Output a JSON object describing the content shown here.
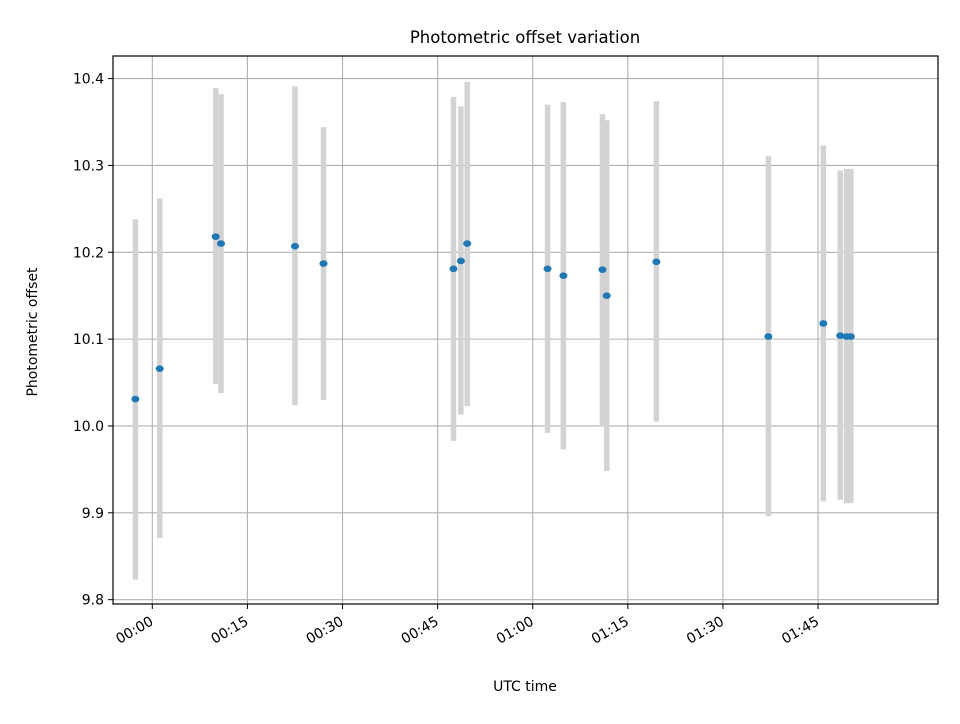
{
  "chart_data": {
    "type": "scatter",
    "title": "Photometric offset variation",
    "xlabel": "UTC time",
    "ylabel": "Photometric offset",
    "grid": true,
    "x_tick_labels": [
      "00:00",
      "00:15",
      "00:30",
      "00:45",
      "01:00",
      "01:15",
      "01:30",
      "01:45"
    ],
    "y_tick_labels": [
      "9.8",
      "9.9",
      "10.0",
      "10.1",
      "10.2",
      "10.3",
      "10.4"
    ],
    "xlim": [
      "23:53:48",
      "02:03:55"
    ],
    "ylim": [
      9.795,
      10.426
    ],
    "colors": {
      "point": "#1f77b4",
      "errorbar": "#d3d3d3",
      "grid": "#b0b0b0"
    },
    "series": [
      {
        "points": [
          {
            "time": "23:57:20",
            "value": 10.031,
            "lower": 9.823,
            "upper": 10.238
          },
          {
            "time": "00:01:10",
            "value": 10.066,
            "lower": 9.871,
            "upper": 10.262
          },
          {
            "time": "00:10:00",
            "value": 10.218,
            "lower": 10.048,
            "upper": 10.389
          },
          {
            "time": "00:10:50",
            "value": 10.21,
            "lower": 10.038,
            "upper": 10.382
          },
          {
            "time": "00:22:30",
            "value": 10.207,
            "lower": 10.024,
            "upper": 10.391
          },
          {
            "time": "00:27:00",
            "value": 10.187,
            "lower": 10.03,
            "upper": 10.344
          },
          {
            "time": "00:47:30",
            "value": 10.181,
            "lower": 9.983,
            "upper": 10.379
          },
          {
            "time": "00:48:40",
            "value": 10.19,
            "lower": 10.013,
            "upper": 10.368
          },
          {
            "time": "00:49:40",
            "value": 10.21,
            "lower": 10.023,
            "upper": 10.396
          },
          {
            "time": "01:02:20",
            "value": 10.181,
            "lower": 9.992,
            "upper": 10.37
          },
          {
            "time": "01:04:50",
            "value": 10.173,
            "lower": 9.973,
            "upper": 10.373
          },
          {
            "time": "01:11:00",
            "value": 10.18,
            "lower": 10.0,
            "upper": 10.359
          },
          {
            "time": "01:11:40",
            "value": 10.15,
            "lower": 9.948,
            "upper": 10.352
          },
          {
            "time": "01:19:30",
            "value": 10.189,
            "lower": 10.005,
            "upper": 10.374
          },
          {
            "time": "01:37:10",
            "value": 10.103,
            "lower": 9.896,
            "upper": 10.311
          },
          {
            "time": "01:45:50",
            "value": 10.118,
            "lower": 9.913,
            "upper": 10.323
          },
          {
            "time": "01:48:30",
            "value": 10.104,
            "lower": 9.915,
            "upper": 10.294
          },
          {
            "time": "01:49:30",
            "value": 10.103,
            "lower": 9.911,
            "upper": 10.296
          },
          {
            "time": "01:50:10",
            "value": 10.103,
            "lower": 9.911,
            "upper": 10.296
          }
        ]
      }
    ]
  }
}
